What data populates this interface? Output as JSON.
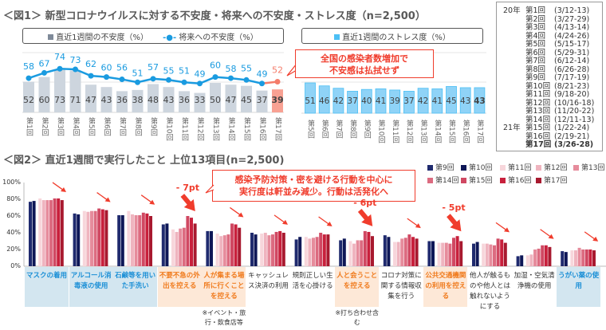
{
  "figure1": {
    "title": "＜図1＞ 新型コロナウイルスに対する不安度・将来への不安度・ストレス度（n=2,500）",
    "callout": [
      "全国の感染者数増加で",
      "不安感は払拭せず"
    ],
    "colors": {
      "anxiety_bar": "#cdd5de",
      "latest_bar": "#f8a193",
      "future_line": "#1a9be0",
      "latest_line": "#f47c6a",
      "stress_bar": "#8fd3f7"
    }
  },
  "chart_data": [
    {
      "type": "bar+line",
      "legend": [
        "直近1週間の不安度（%）",
        "将来への不安度（%）"
      ],
      "categories": [
        "第1回",
        "第2回",
        "第3回",
        "第4回",
        "第5回",
        "第6回",
        "第7回",
        "第8回",
        "第9回",
        "第10回",
        "第11回",
        "第12回",
        "第13回",
        "第14回",
        "第15回",
        "第16回",
        "第17回"
      ],
      "series": [
        {
          "name": "直近1週間の不安度（%）",
          "type": "bar",
          "values": [
            52,
            60,
            73,
            71,
            47,
            43,
            36,
            38,
            48,
            43,
            36,
            33,
            50,
            47,
            45,
            37,
            39
          ]
        },
        {
          "name": "将来への不安度（%）",
          "type": "line",
          "values": [
            58,
            67,
            74,
            73,
            62,
            60,
            56,
            51,
            57,
            55,
            51,
            49,
            60,
            58,
            55,
            49,
            52
          ]
        }
      ],
      "data_labels": true,
      "grid": true
    },
    {
      "type": "bar",
      "legend": [
        "直近1週間のストレス度（%）"
      ],
      "categories": [
        "第5回",
        "第6回",
        "第7回",
        "第8回",
        "第9回",
        "第10回",
        "第11回",
        "第12回",
        "第13回",
        "第14回",
        "第15回",
        "第16回",
        "第17回"
      ],
      "series": [
        {
          "name": "直近1週間のストレス度（%）",
          "values": [
            51,
            46,
            42,
            37,
            40,
            41,
            39,
            37,
            42,
            41,
            45,
            43,
            43
          ]
        }
      ],
      "data_labels": true
    },
    {
      "type": "bar",
      "title": "＜図2＞ 直近1週間で実行したこと 上位13項目(n=2,500)",
      "ylim": [
        0,
        100
      ],
      "yticks": [
        "0%",
        "20%",
        "40%",
        "60%",
        "80%",
        "100%"
      ],
      "grid": false,
      "legend_position": "top-right",
      "categories": [
        {
          "label": "マスクの着用",
          "style": "blue",
          "note": "",
          "arrow": "small"
        },
        {
          "label": "アルコール消毒液の使用",
          "style": "blue",
          "note": "",
          "arrow": "small"
        },
        {
          "label": "石鹸等を用いた手洗い",
          "style": "blue",
          "note": "",
          "arrow": "small"
        },
        {
          "label": "不要不急の外出を控える",
          "style": "orange",
          "note": "",
          "arrow": "big"
        },
        {
          "label": "人が集まる場所に行くことを控える",
          "style": "orange",
          "note": "※イベント・旅行・飲食店等",
          "arrow": "small"
        },
        {
          "label": "キャッシュレス決済の利用",
          "style": "plain",
          "note": "",
          "arrow": "small"
        },
        {
          "label": "規則正しい生活を心掛ける",
          "style": "plain",
          "note": "",
          "arrow": "small"
        },
        {
          "label": "人と会うことを控える",
          "style": "orange",
          "note": "※打ち合わせ含む",
          "arrow": "big"
        },
        {
          "label": "コロナ対策に関する情報収集を行う",
          "style": "plain",
          "note": "",
          "arrow": "small"
        },
        {
          "label": "公共交通機関の利用を控える",
          "style": "orange",
          "note": "",
          "arrow": "big"
        },
        {
          "label": "他人が触るものや他人とは触れないようにする",
          "style": "plain",
          "note": "",
          "arrow": "small"
        },
        {
          "label": "加湿・空気清浄機の使用",
          "style": "plain",
          "note": "",
          "arrow": "small"
        },
        {
          "label": "うがい薬の使用",
          "style": "blue",
          "note": "",
          "arrow": "small"
        }
      ],
      "series": [
        {
          "name": "第9回",
          "color": "#1f2a6e",
          "values": [
            77,
            63,
            61,
            50,
            42,
            40,
            32,
            31,
            37,
            30,
            27,
            12,
            18
          ]
        },
        {
          "name": "第10回",
          "color": "#0e1757",
          "values": [
            78,
            62,
            61,
            51,
            42,
            38,
            35,
            33,
            35,
            30,
            29,
            13,
            17
          ]
        },
        {
          "name": "第11回",
          "color": "#f7d6db",
          "values": [
            81,
            66,
            66,
            44,
            39,
            39,
            35,
            30,
            29,
            28,
            27,
            13,
            19
          ]
        },
        {
          "name": "第12回",
          "color": "#efb4bf",
          "values": [
            79,
            65,
            62,
            41,
            36,
            40,
            33,
            27,
            29,
            28,
            27,
            14,
            19
          ]
        },
        {
          "name": "第13回",
          "color": "#e68c9c",
          "values": [
            79,
            66,
            61,
            45,
            37,
            37,
            34,
            31,
            33,
            28,
            26,
            20,
            22
          ]
        },
        {
          "name": "第14回",
          "color": "#dc6b80",
          "values": [
            79,
            66,
            61,
            46,
            38,
            38,
            35,
            31,
            34,
            27,
            25,
            21,
            20
          ]
        },
        {
          "name": "第15回",
          "color": "#d04862",
          "values": [
            81,
            69,
            64,
            60,
            51,
            41,
            40,
            42,
            38,
            34,
            33,
            25,
            20
          ]
        },
        {
          "name": "第16回",
          "color": "#c8203c",
          "values": [
            81,
            68,
            63,
            58,
            50,
            42,
            38,
            41,
            35,
            36,
            32,
            25,
            20
          ]
        },
        {
          "name": "第17回",
          "color": "#a8192f",
          "values": [
            79,
            67,
            60,
            51,
            46,
            40,
            38,
            36,
            33,
            30,
            28,
            23,
            19
          ]
        }
      ],
      "annotations": {
        "callout": [
          "感染予防対策・密を避ける行動を中心に",
          "実行度は軒並み減少。行動は活発化へ"
        ],
        "drops": [
          {
            "category": 3,
            "text": "- 7pt"
          },
          {
            "category": 7,
            "text": "- 6pt"
          },
          {
            "category": 9,
            "text": "- 5pt"
          }
        ],
        "arrow_color": "#f03c2c"
      }
    }
  ],
  "survey_schedule": [
    {
      "year": "20年",
      "round": "第1回",
      "dates": "(3/12-13)"
    },
    {
      "year": "",
      "round": "第2回",
      "dates": "(3/27-29)"
    },
    {
      "year": "",
      "round": "第3回",
      "dates": "(4/13-14)"
    },
    {
      "year": "",
      "round": "第4回",
      "dates": "(4/24-26)"
    },
    {
      "year": "",
      "round": "第5回",
      "dates": "(5/15-17)"
    },
    {
      "year": "",
      "round": "第6回",
      "dates": "(5/29-31)"
    },
    {
      "year": "",
      "round": "第7回",
      "dates": "(6/12-14)"
    },
    {
      "year": "",
      "round": "第8回",
      "dates": "(6/26-28)"
    },
    {
      "year": "",
      "round": "第9回",
      "dates": "(7/17-19)"
    },
    {
      "year": "",
      "round": "第10回",
      "dates": "(8/21-23)"
    },
    {
      "year": "",
      "round": "第11回",
      "dates": "(9/18-20)"
    },
    {
      "year": "",
      "round": "第12回",
      "dates": "(10/16-18)"
    },
    {
      "year": "",
      "round": "第13回",
      "dates": "(11/20-22)"
    },
    {
      "year": "",
      "round": "第14回",
      "dates": "(12/11-13)"
    },
    {
      "year": "21年",
      "round": "第15回",
      "dates": "(1/22-24)"
    },
    {
      "year": "",
      "round": "第16回",
      "dates": "(2/19-21)"
    },
    {
      "year": "",
      "round": "第17回",
      "dates": "(3/26-28)"
    }
  ]
}
